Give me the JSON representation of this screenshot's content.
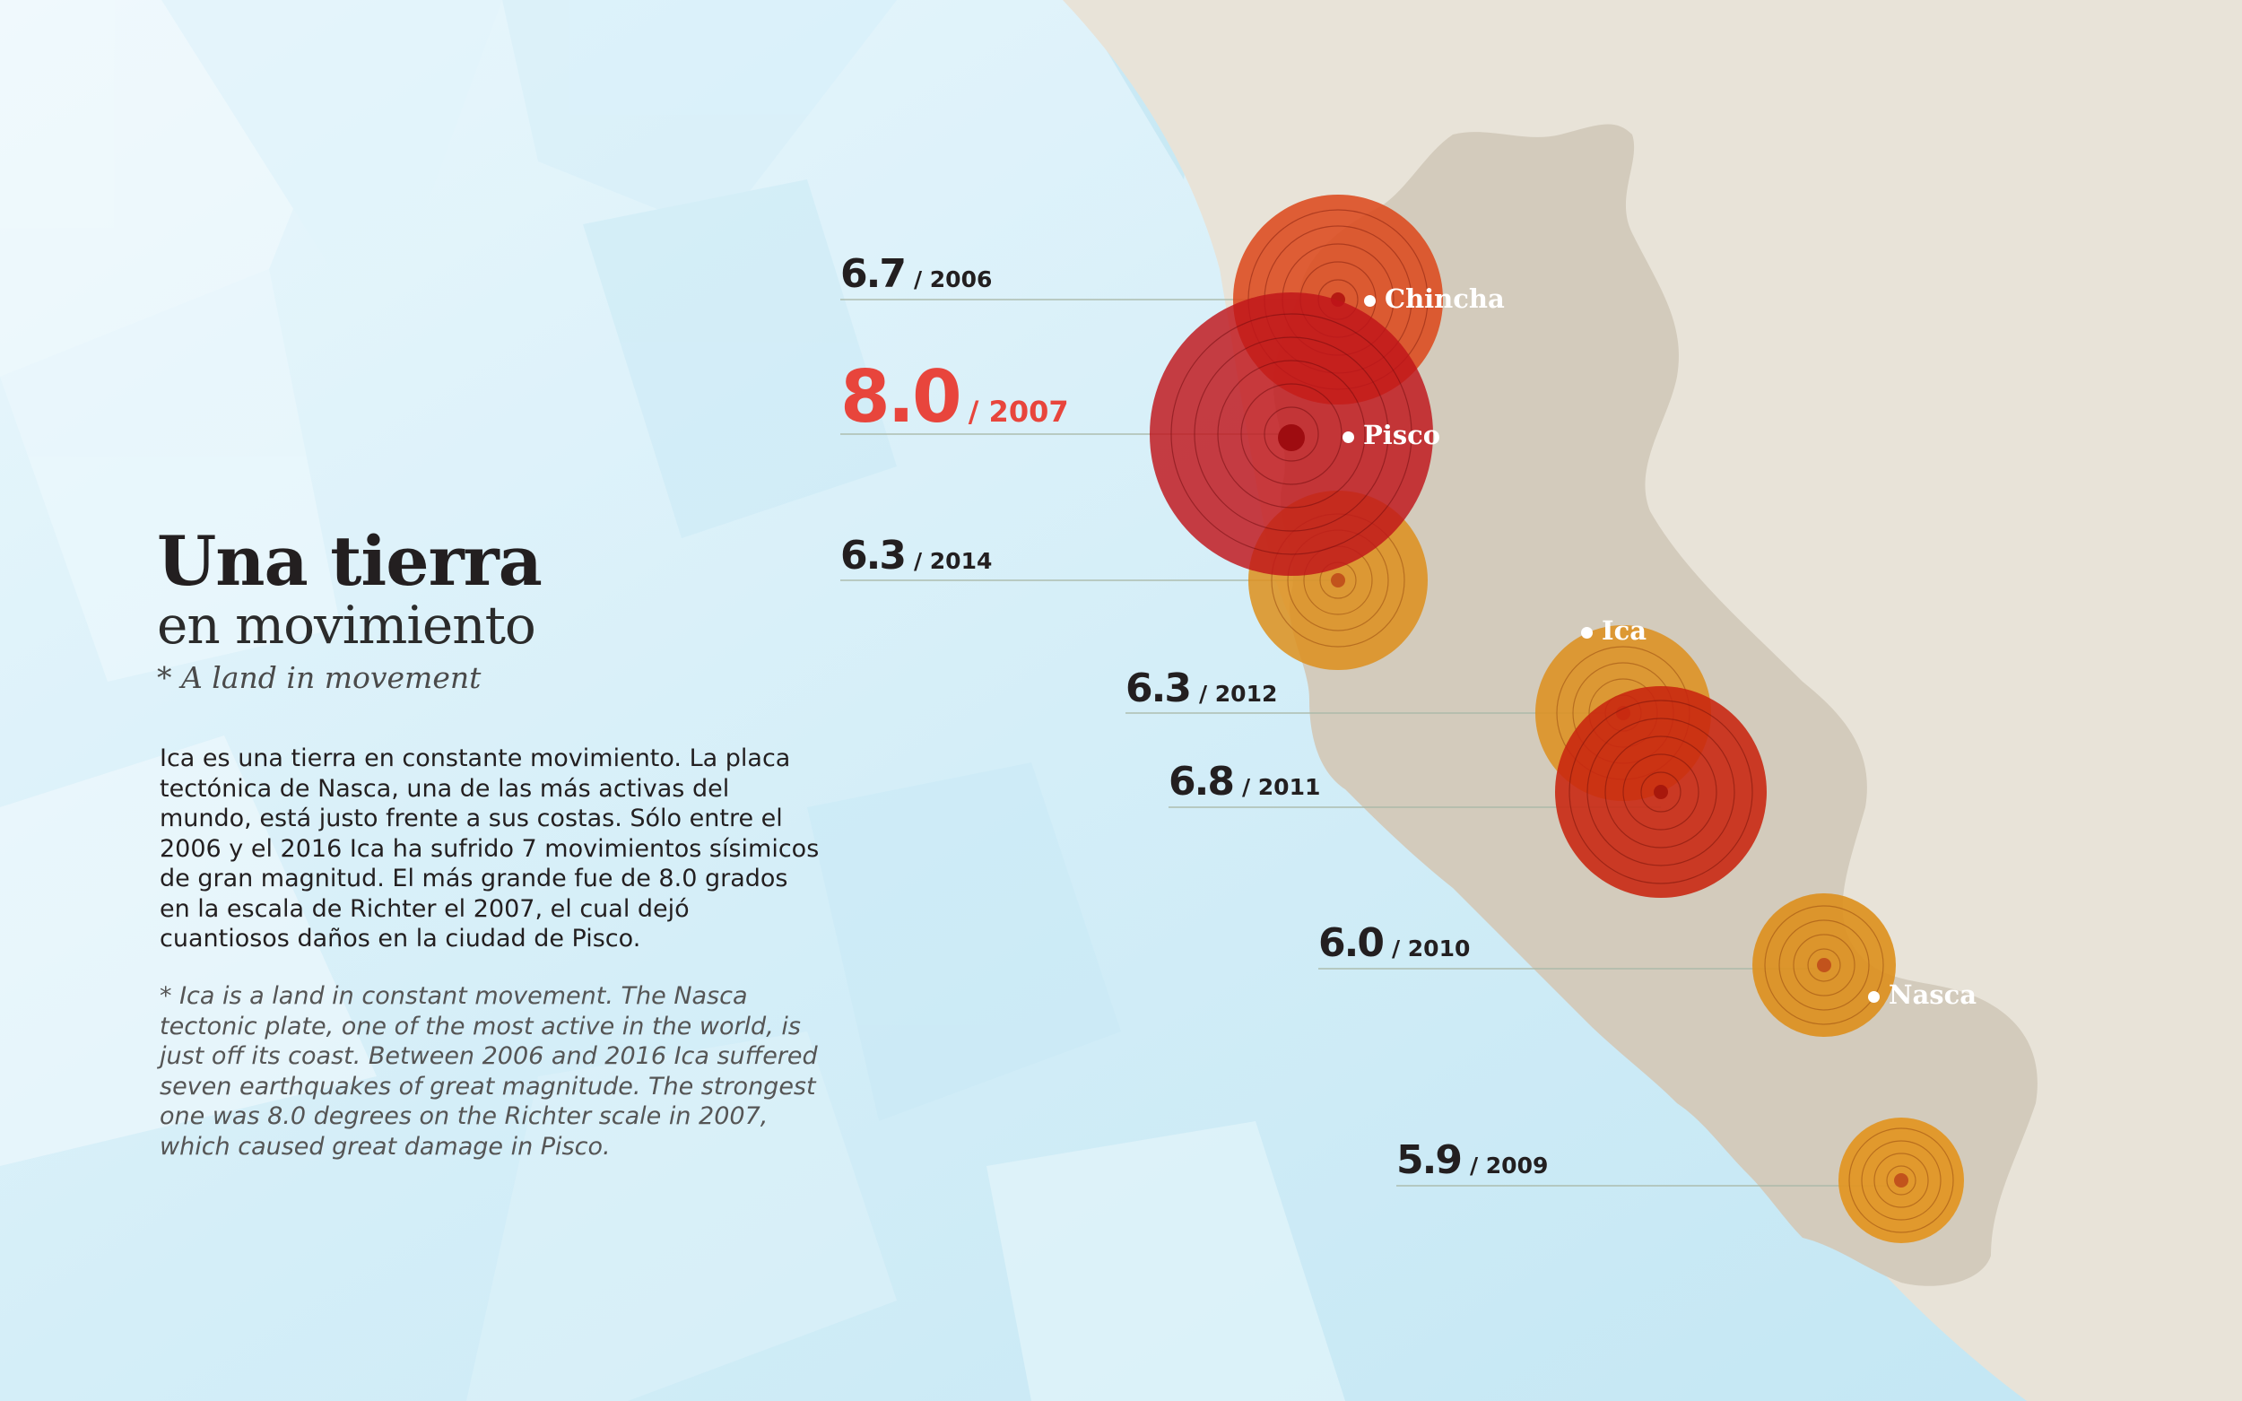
{
  "title": {
    "main": "Una tierra",
    "sub": "en movimiento",
    "english": "* A land in movement"
  },
  "body": {
    "spanish": "Ica es una tierra en constante movimiento. La placa tectónica de Nasca, una de las más activas del mundo, está justo frente a sus costas. Sólo entre el 2006 y el 2016 Ica ha sufrido 7 movimientos sísimicos de gran magnitud. El más grande fue de 8.0 grados en la escala de Richter el 2007, el cual dejó cuantiosos daños en la ciudad de Pisco.",
    "english": "* Ica is a land in constant movement. The Nasca tectonic plate, one of the most active in the world, is just off its coast. Between 2006 and 2016 Ica suffered seven earthquakes of great magnitude. The strongest one was 8.0 degrees on the Richter scale in 2007, which caused great damage in Pisco."
  },
  "earthquakes": [
    {
      "magnitude": "6.7",
      "year": "/ 2006",
      "color": "#dc4a1e"
    },
    {
      "magnitude": "8.0",
      "year": "/ 2007",
      "color": "#c0141a",
      "highlight": true
    },
    {
      "magnitude": "6.3",
      "year": "/ 2014",
      "color": "#e0901e"
    },
    {
      "magnitude": "6.3",
      "year": "/ 2012",
      "color": "#e0901e"
    },
    {
      "magnitude": "6.8",
      "year": "/ 2011",
      "color": "#c8240f"
    },
    {
      "magnitude": "6.0",
      "year": "/ 2010",
      "color": "#e0901e"
    },
    {
      "magnitude": "5.9",
      "year": "/ 2009",
      "color": "#e0901e"
    }
  ],
  "cities": [
    "Chincha",
    "Pisco",
    "Ica",
    "Nasca"
  ],
  "colors": {
    "ocean": "#c3e6f3",
    "land": "#d3cbbc",
    "background_land": "#e8e3d8",
    "highlight_red": "#e8453c",
    "text_dark": "#231f20"
  }
}
